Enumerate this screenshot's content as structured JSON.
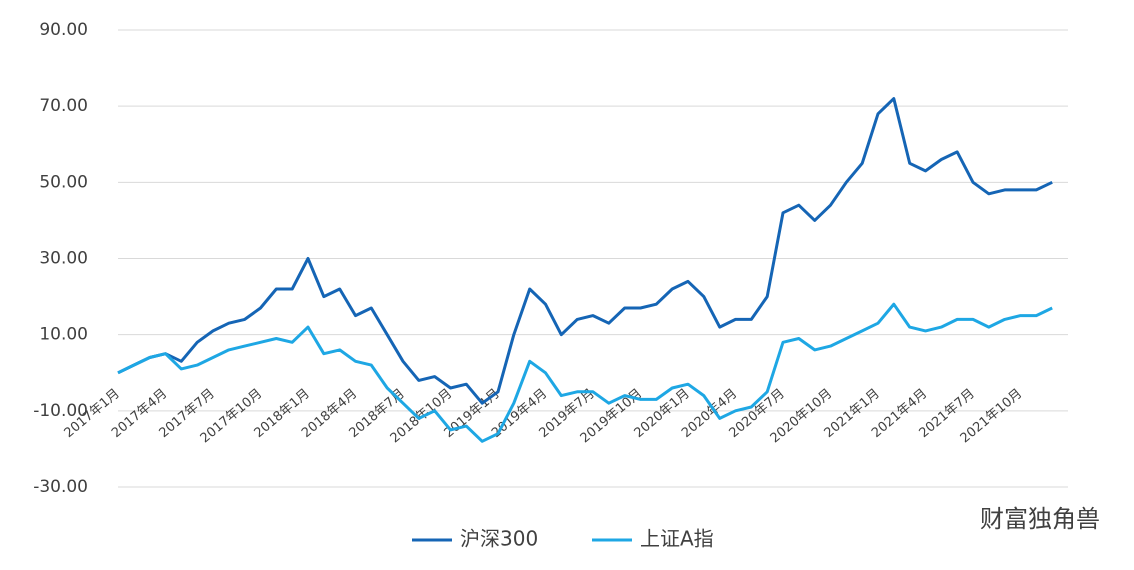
{
  "chart_data": {
    "type": "line",
    "categories": [
      "2017年1月",
      null,
      null,
      "2017年4月",
      null,
      null,
      "2017年7月",
      null,
      null,
      "2017年10月",
      null,
      null,
      "2018年1月",
      null,
      null,
      "2018年4月",
      null,
      null,
      "2018年7月",
      null,
      null,
      "2018年10月",
      null,
      null,
      "2019年1月",
      null,
      null,
      "2019年4月",
      null,
      null,
      "2019年7月",
      null,
      null,
      "2019年10月",
      null,
      null,
      "2020年1月",
      null,
      null,
      "2020年4月",
      null,
      null,
      "2020年7月",
      null,
      null,
      "2020年10月",
      null,
      null,
      "2021年1月",
      null,
      null,
      "2021年4月",
      null,
      null,
      "2021年7月",
      null,
      null,
      "2021年10月",
      null,
      null
    ],
    "series": [
      {
        "name": "沪深300",
        "color": "#1565b5",
        "values": [
          0,
          2,
          4,
          5,
          3,
          8,
          11,
          13,
          14,
          17,
          22,
          22,
          30,
          20,
          22,
          15,
          17,
          10,
          3,
          -2,
          -1,
          -4,
          -3,
          -8,
          -5,
          10,
          22,
          18,
          10,
          14,
          15,
          13,
          17,
          17,
          18,
          22,
          24,
          20,
          12,
          14,
          14,
          20,
          42,
          44,
          40,
          44,
          50,
          55,
          68,
          72,
          55,
          53,
          56,
          58,
          50,
          47,
          48,
          48,
          48,
          50
        ]
      },
      {
        "name": "上证A指",
        "color": "#1ea7e4",
        "values": [
          0,
          2,
          4,
          5,
          1,
          2,
          4,
          6,
          7,
          8,
          9,
          8,
          12,
          5,
          6,
          3,
          2,
          -4,
          -8,
          -12,
          -10,
          -15,
          -14,
          -18,
          -16,
          -8,
          3,
          0,
          -6,
          -5,
          -5,
          -8,
          -6,
          -7,
          -7,
          -4,
          -3,
          -6,
          -12,
          -10,
          -9,
          -5,
          8,
          9,
          6,
          7,
          9,
          11,
          13,
          18,
          12,
          11,
          12,
          14,
          14,
          12,
          14,
          15,
          15,
          17
        ]
      }
    ],
    "ylim": [
      -30,
      90
    ],
    "yticks": [
      {
        "value": -30,
        "label": "-30.00"
      },
      {
        "value": -10,
        "label": "-10.00"
      },
      {
        "value": 10,
        "label": "10.00"
      },
      {
        "value": 30,
        "label": "30.00"
      },
      {
        "value": 50,
        "label": "50.00"
      },
      {
        "value": 70,
        "label": "70.00"
      },
      {
        "value": 90,
        "label": "90.00"
      }
    ],
    "grid": true,
    "watermark": "财富独角兽"
  }
}
